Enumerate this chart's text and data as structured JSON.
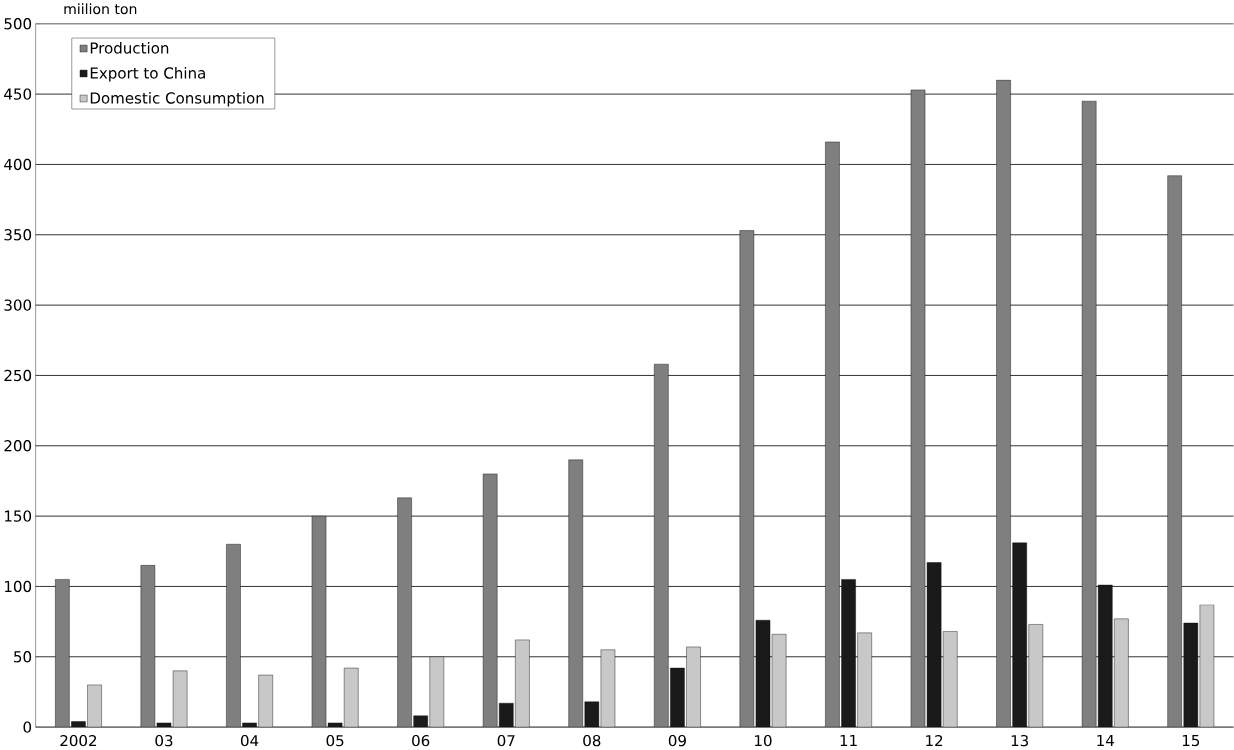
{
  "chart_data": {
    "type": "bar",
    "ylabel": "miilion ton",
    "categories": [
      "2002",
      "03",
      "04",
      "05",
      "06",
      "07",
      "08",
      "09",
      "10",
      "11",
      "12",
      "13",
      "14",
      "15"
    ],
    "series": [
      {
        "name": "Production",
        "color": "#7f7f7f",
        "values": [
          105,
          115,
          130,
          150,
          163,
          180,
          190,
          258,
          353,
          416,
          453,
          460,
          445,
          392
        ]
      },
      {
        "name": "Export to China",
        "color": "#1a1a1a",
        "values": [
          4,
          3,
          3,
          3,
          8,
          17,
          18,
          42,
          76,
          105,
          117,
          131,
          101,
          74
        ]
      },
      {
        "name": "Domestic Consumption",
        "color": "#c8c8c8",
        "values": [
          30,
          40,
          37,
          42,
          50,
          62,
          55,
          57,
          66,
          67,
          68,
          73,
          77,
          87
        ]
      }
    ],
    "ylim": [
      0,
      500
    ],
    "yticks": [
      0,
      50,
      100,
      150,
      200,
      250,
      300,
      350,
      400,
      450,
      500
    ],
    "grid": "y",
    "legend": "top left"
  }
}
